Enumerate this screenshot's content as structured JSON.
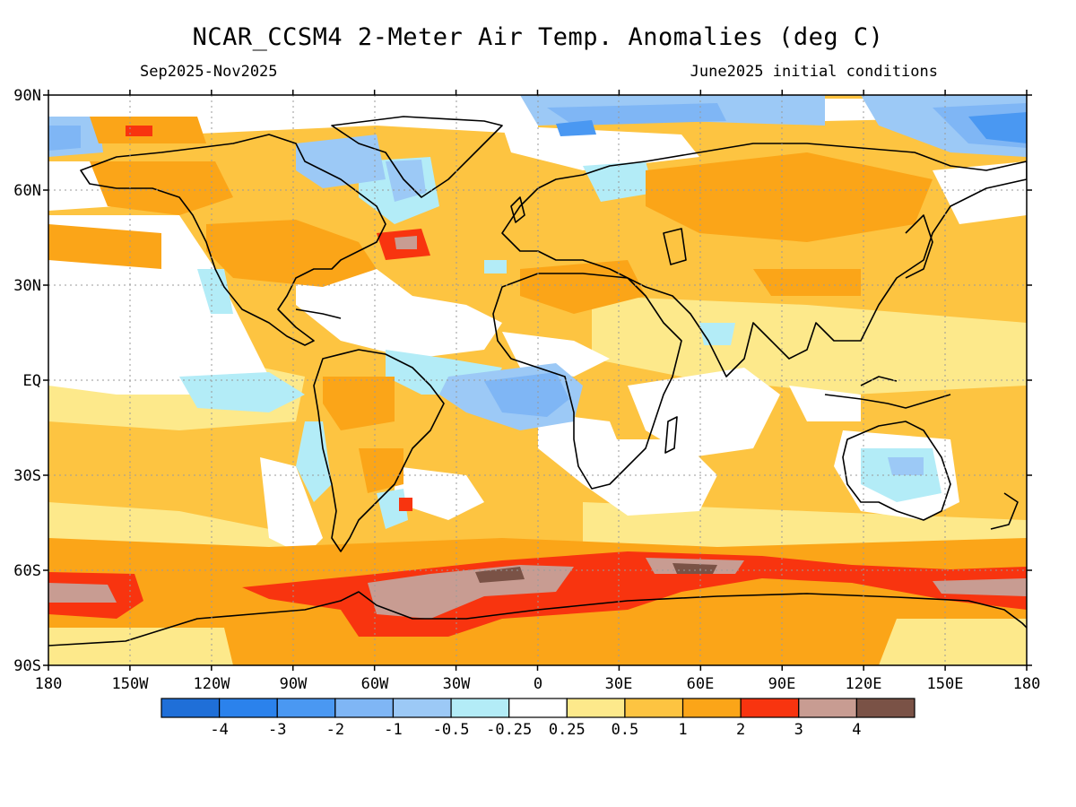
{
  "title": "NCAR_CCSM4 2-Meter Air Temp. Anomalies (deg C)",
  "subtitle_left": "Sep2025-Nov2025",
  "subtitle_right": "June2025 initial conditions",
  "lat_labels": [
    "90N",
    "60N",
    "30N",
    "EQ",
    "30S",
    "60S",
    "90S"
  ],
  "lon_labels": [
    "180",
    "150W",
    "120W",
    "90W",
    "60W",
    "30W",
    "0",
    "30E",
    "60E",
    "90E",
    "120E",
    "150E",
    "180"
  ],
  "colorbar": {
    "colors": [
      "#1f6fd8",
      "#2b82ec",
      "#4a98f2",
      "#7fb6f5",
      "#9cc9f6",
      "#b3ecf7",
      "#ffffff",
      "#fde98b",
      "#fdc441",
      "#fba518",
      "#f8340f",
      "#c89c92",
      "#7a5246"
    ],
    "labels": [
      "-4",
      "-3",
      "-2",
      "-1",
      "-0.5",
      "-0.25",
      "0.25",
      "0.5",
      "1",
      "2",
      "3",
      "4"
    ]
  }
}
